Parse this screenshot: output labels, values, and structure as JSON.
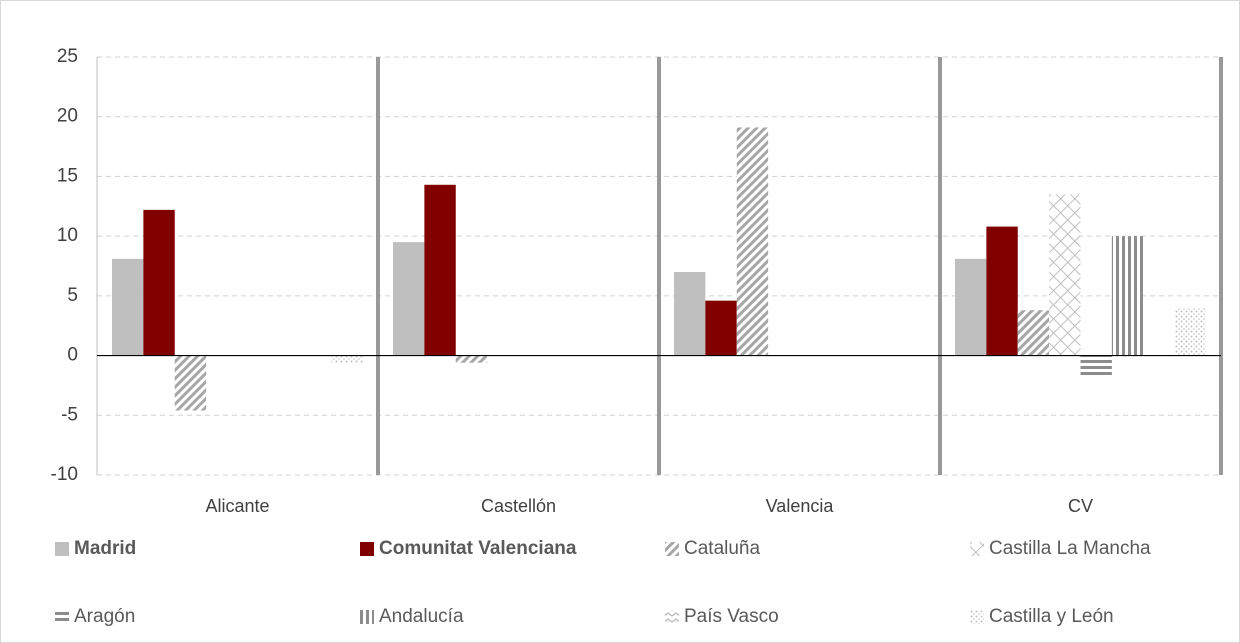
{
  "chart_data": {
    "type": "bar",
    "categories": [
      "Alicante",
      "Castellón",
      "Valencia",
      "CV"
    ],
    "series": [
      {
        "name": "Madrid",
        "color": "#bfbfbf",
        "pattern": "solid",
        "bold": true,
        "values": [
          8.1,
          9.5,
          7.0,
          8.1
        ]
      },
      {
        "name": "Comunitat Valenciana",
        "color": "#800000",
        "pattern": "solid",
        "bold": true,
        "values": [
          12.2,
          14.3,
          4.6,
          10.8
        ]
      },
      {
        "name": "Cataluña",
        "color": "#a6a6a6",
        "pattern": "diagonal",
        "values": [
          -4.6,
          -0.6,
          19.1,
          3.8
        ]
      },
      {
        "name": "Castilla La Mancha",
        "color": "#bfbfbf",
        "pattern": "crosshatch",
        "values": [
          null,
          null,
          null,
          13.5
        ]
      },
      {
        "name": "Aragón",
        "color": "#8c8c8c",
        "pattern": "horizontal",
        "values": [
          null,
          null,
          null,
          -1.8
        ]
      },
      {
        "name": "Andalucía",
        "color": "#8c8c8c",
        "pattern": "vertical",
        "values": [
          null,
          null,
          null,
          10.0
        ]
      },
      {
        "name": "País Vasco",
        "color": "#bfbfbf",
        "pattern": "zigzag",
        "values": [
          null,
          null,
          null,
          null
        ]
      },
      {
        "name": "Castilla y León",
        "color": "#bfbfbf",
        "pattern": "dots",
        "values": [
          -0.6,
          null,
          null,
          4.0
        ]
      }
    ],
    "ylim": [
      -10,
      25
    ],
    "yticks": [
      -10,
      -5,
      0,
      5,
      10,
      15,
      20,
      25
    ],
    "grid": true
  }
}
